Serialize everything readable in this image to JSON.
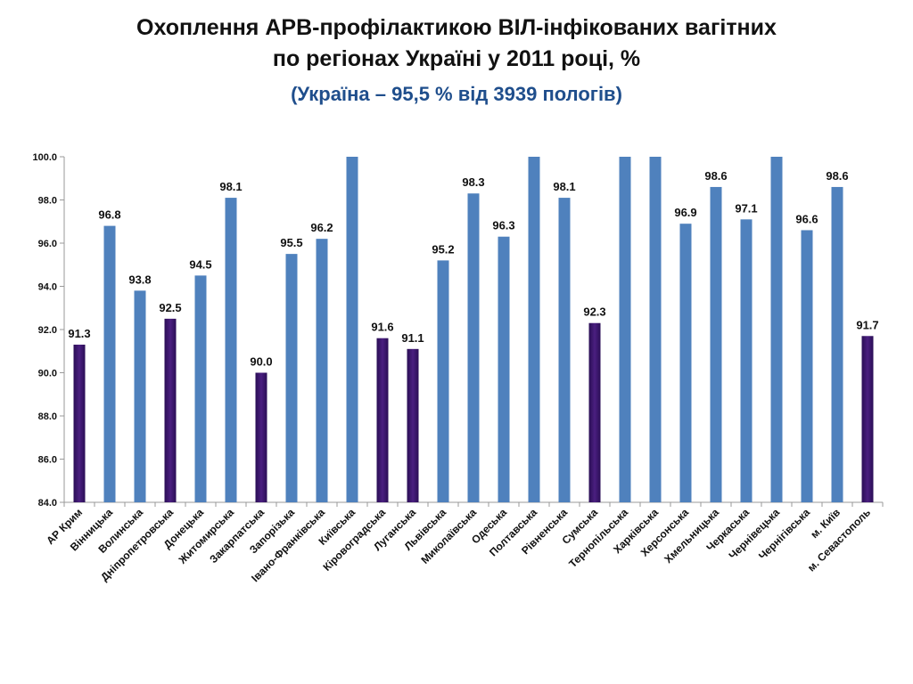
{
  "title_line1": "Охоплення АРВ-профілактикою ВІЛ-інфікованих вагітних",
  "title_line2": "по регіонах Україні у 2011 році, %",
  "subtitle": "(Україна – 95,5 % від 3939 пологів)",
  "chart_data": {
    "type": "bar",
    "title": "Охоплення АРВ-профілактикою ВІЛ-інфікованих вагітних по регіонах Україні у 2011 році, %",
    "subtitle": "(Україна – 95,5 % від 3939 пологів)",
    "xlabel": "",
    "ylabel": "",
    "ylim": [
      84.0,
      100.0
    ],
    "yticks": [
      "84.0",
      "86.0",
      "88.0",
      "90.0",
      "92.0",
      "94.0",
      "96.0",
      "98.0",
      "100.0"
    ],
    "grid": false,
    "legend": "none",
    "categories": [
      "АР Крим",
      "Вінницька",
      "Волинська",
      "Дніпропетровська",
      "Донецька",
      "Житомирська",
      "Закарпатська",
      "Запорізька",
      "Івано-Франківська",
      "Київська",
      "Кіровоградська",
      "Луганська",
      "Львівська",
      "Миколаївська",
      "Одеська",
      "Полтавська",
      "Рівненська",
      "Сумська",
      "Тернопільська",
      "Харківська",
      "Херсонська",
      "Хмельницька",
      "Черкаська",
      "Чернівецька",
      "Чернігівська",
      "м. Київ",
      "м. Севастополь"
    ],
    "values": [
      91.3,
      96.8,
      93.8,
      92.5,
      94.5,
      98.1,
      90.0,
      95.5,
      96.2,
      100.0,
      91.6,
      91.1,
      95.2,
      98.3,
      96.3,
      100.0,
      98.1,
      92.3,
      100.0,
      100.0,
      96.9,
      98.6,
      97.1,
      100.0,
      96.6,
      98.6,
      91.7
    ],
    "data_labels": [
      "91.3",
      "96.8",
      "93.8",
      "92.5",
      "94.5",
      "98.1",
      "90.0",
      "95.5",
      "96.2",
      "",
      "91.6",
      "91.1",
      "95.2",
      "98.3",
      "96.3",
      "",
      "98.1",
      "92.3",
      "",
      "",
      "96.9",
      "98.6",
      "97.1",
      "",
      "96.6",
      "98.6",
      "91.7"
    ],
    "highlighted": [
      true,
      false,
      false,
      true,
      false,
      false,
      true,
      false,
      false,
      false,
      true,
      true,
      false,
      false,
      false,
      false,
      false,
      true,
      false,
      false,
      false,
      false,
      false,
      false,
      false,
      false,
      true
    ],
    "colors": {
      "normal": "#4f81bd",
      "highlight": "#3f1870"
    }
  }
}
